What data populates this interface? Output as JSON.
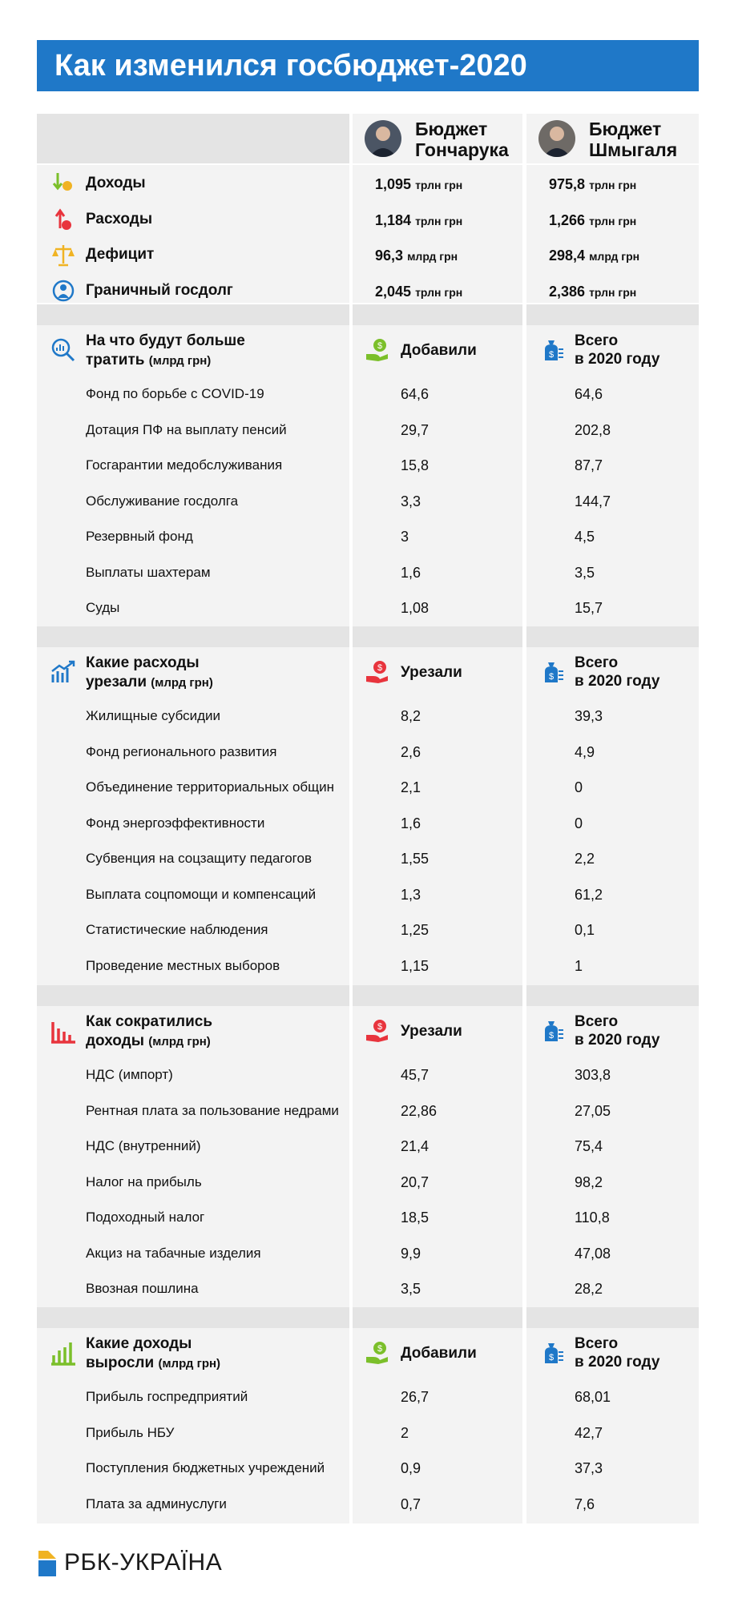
{
  "title": "Как изменился госбюджет-2020",
  "colors": {
    "brand": "#1f78c8",
    "band": "#e4e4e4",
    "panel": "#f3f3f3",
    "green": "#7bbf2a",
    "red": "#e8343d",
    "orange": "#f0b323",
    "blue": "#1f78c8"
  },
  "header": {
    "budget1": [
      "Бюджет",
      "Гончарука"
    ],
    "budget2": [
      "Бюджет",
      "Шмыгаля"
    ]
  },
  "summary": [
    {
      "label": "Доходы",
      "icon": "income-arrow-icon",
      "v1": "1,095",
      "u1": "трлн грн",
      "v2": "975,8",
      "u2": "трлн грн"
    },
    {
      "label": "Расходы",
      "icon": "expense-arrow-icon",
      "v1": "1,184",
      "u1": "трлн грн",
      "v2": "1,266",
      "u2": "трлн грн"
    },
    {
      "label": "Дефицит",
      "icon": "scales-icon",
      "v1": "96,3",
      "u1": "млрд грн",
      "v2": "298,4",
      "u2": "млрд грн"
    },
    {
      "label": "Граничный госдолг",
      "icon": "debt-person-icon",
      "v1": "2,045",
      "u1": "трлн грн",
      "v2": "2,386",
      "u2": "трлн грн"
    }
  ],
  "sections": [
    {
      "title1": "На что будут больше",
      "title2": "тратить",
      "sub": "(млрд грн)",
      "icon": "search-chart-icon",
      "col1": "Добавили",
      "col1_icon": "money-hand-green-icon",
      "col2a": "Всего",
      "col2b": "в 2020 году",
      "col2_icon": "money-bag-icon",
      "rows": [
        {
          "label": "Фонд по борьбе с COVID-19",
          "v1": "64,6",
          "v2": "64,6"
        },
        {
          "label": "Дотация ПФ на выплату пенсий",
          "v1": "29,7",
          "v2": "202,8"
        },
        {
          "label": "Госгарантии медобслуживания",
          "v1": "15,8",
          "v2": "87,7"
        },
        {
          "label": "Обслуживание госдолга",
          "v1": "3,3",
          "v2": "144,7"
        },
        {
          "label": "Резервный фонд",
          "v1": "3",
          "v2": "4,5"
        },
        {
          "label": "Выплаты шахтерам",
          "v1": "1,6",
          "v2": "3,5"
        },
        {
          "label": "Суды",
          "v1": "1,08",
          "v2": "15,7"
        }
      ]
    },
    {
      "title1": "Какие расходы",
      "title2": "урезали",
      "sub": "(млрд грн)",
      "icon": "growth-chart-icon",
      "col1": "Урезали",
      "col1_icon": "money-hand-red-icon",
      "col2a": "Всего",
      "col2b": "в 2020 году",
      "col2_icon": "money-bag-icon",
      "rows": [
        {
          "label": "Жилищные субсидии",
          "v1": "8,2",
          "v2": "39,3"
        },
        {
          "label": "Фонд регионального развития",
          "v1": "2,6",
          "v2": "4,9"
        },
        {
          "label": "Объединение территориальных общин",
          "v1": "2,1",
          "v2": "0"
        },
        {
          "label": "Фонд энергоэффективности",
          "v1": "1,6",
          "v2": "0"
        },
        {
          "label": "Субвенция на соцзащиту педагогов",
          "v1": "1,55",
          "v2": "2,2"
        },
        {
          "label": "Выплата соцпомощи и компенсаций",
          "v1": "1,3",
          "v2": "61,2"
        },
        {
          "label": "Статистические наблюдения",
          "v1": "1,25",
          "v2": "0,1"
        },
        {
          "label": "Проведение местных выборов",
          "v1": "1,15",
          "v2": "1"
        }
      ]
    },
    {
      "title1": "Как сократились",
      "title2": "доходы",
      "sub": "(млрд грн)",
      "icon": "bar-chart-red-icon",
      "col1": "Урезали",
      "col1_icon": "money-hand-red-icon",
      "col2a": "Всего",
      "col2b": "в 2020 году",
      "col2_icon": "money-bag-icon",
      "rows": [
        {
          "label": "НДС (импорт)",
          "v1": "45,7",
          "v2": "303,8"
        },
        {
          "label": "Рентная плата за пользование недрами",
          "v1": "22,86",
          "v2": "27,05"
        },
        {
          "label": "НДС (внутренний)",
          "v1": "21,4",
          "v2": "75,4"
        },
        {
          "label": "Налог на прибыль",
          "v1": "20,7",
          "v2": "98,2"
        },
        {
          "label": "Подоходный налог",
          "v1": "18,5",
          "v2": "110,8"
        },
        {
          "label": "Акциз на табачные изделия",
          "v1": "9,9",
          "v2": "47,08"
        },
        {
          "label": "Ввозная пошлина",
          "v1": "3,5",
          "v2": "28,2"
        }
      ]
    },
    {
      "title1": "Какие доходы",
      "title2": "выросли",
      "sub": "(млрд грн)",
      "icon": "bar-chart-green-icon",
      "col1": "Добавили",
      "col1_icon": "money-hand-green-icon",
      "col2a": "Всего",
      "col2b": "в 2020 году",
      "col2_icon": "money-bag-icon",
      "rows": [
        {
          "label": "Прибыль госпредприятий",
          "v1": "26,7",
          "v2": "68,01"
        },
        {
          "label": "Прибыль НБУ",
          "v1": "2",
          "v2": "42,7"
        },
        {
          "label": "Поступления бюджетных учреждений",
          "v1": "0,9",
          "v2": "37,3"
        },
        {
          "label": "Плата за админуслуги",
          "v1": "0,7",
          "v2": "7,6"
        }
      ]
    }
  ],
  "footer": {
    "logo_text": "РБК-УКРАЇНА"
  }
}
